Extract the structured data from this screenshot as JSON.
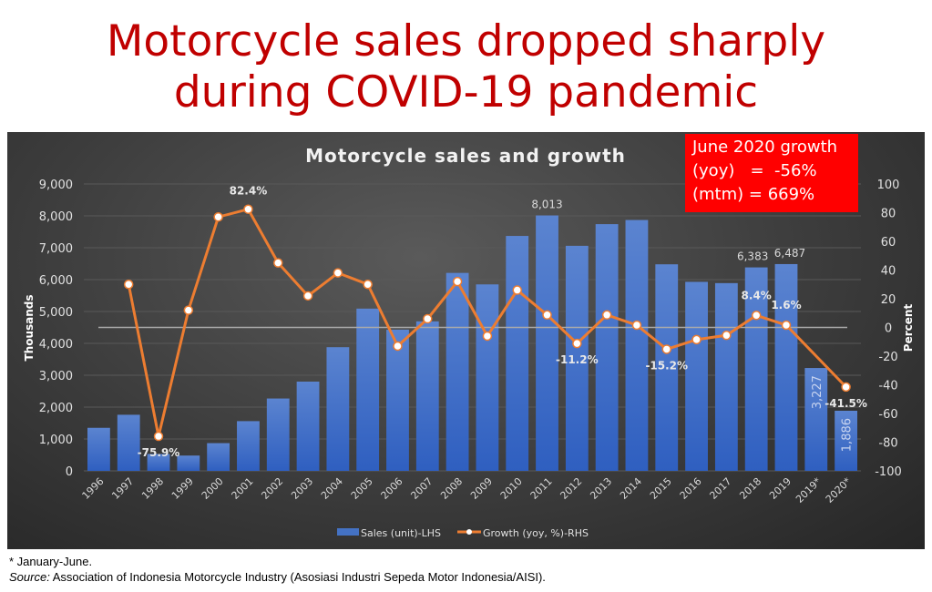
{
  "headline": [
    "Motorcycle sales dropped sharply",
    "during COVID-19 pandemic"
  ],
  "callout": [
    "June 2020 growth",
    "(yoy)   =  -56%",
    "(mtm) = 669%"
  ],
  "footnote": "* January-June.",
  "source_label": "Source:",
  "source_text": " Association of Indonesia Motorcycle Industry (Asosiasi Industri Sepeda Motor Indonesia/AISI).",
  "colors": {
    "bar": "#4472c4",
    "line": "#ed7d31",
    "headline": "#c00000",
    "callout": "#ff0000"
  },
  "chart_data": {
    "type": "bar+line",
    "title": "Motorcycle sales and growth",
    "ylabel": "Thousands",
    "y2label": "Percent",
    "ylim": [
      0,
      9000
    ],
    "y2lim": [
      -100,
      100
    ],
    "yticks": [
      "0",
      "1,000",
      "2,000",
      "3,000",
      "4,000",
      "5,000",
      "6,000",
      "7,000",
      "8,000",
      "9,000"
    ],
    "y2ticks": [
      "-100",
      "-80",
      "-60",
      "-40",
      "-20",
      "0",
      "20",
      "40",
      "60",
      "80",
      "100"
    ],
    "categories": [
      "1996",
      "1997",
      "1998",
      "1999",
      "2000",
      "2001",
      "2002",
      "2003",
      "2004",
      "2005",
      "2006",
      "2007",
      "2008",
      "2009",
      "2010",
      "2011",
      "2012",
      "2013",
      "2014",
      "2015",
      "2016",
      "2017",
      "2018",
      "2019",
      "2019*",
      "2020*"
    ],
    "series": [
      {
        "name": "Sales (unit)-LHS",
        "axis": "left",
        "values": [
          1350,
          1760,
          530,
          480,
          870,
          1560,
          2270,
          2800,
          3880,
          5090,
          4430,
          4690,
          6210,
          5850,
          7370,
          8013,
          7060,
          7740,
          7870,
          6480,
          5930,
          5890,
          6383,
          6487,
          3227,
          1886
        ]
      },
      {
        "name": "Growth (yoy, %)-RHS",
        "axis": "right",
        "values": [
          null,
          30,
          -75.9,
          12,
          77,
          82.4,
          45,
          22,
          38,
          30,
          -13,
          6,
          32,
          -6,
          26,
          8.7,
          -11.2,
          8.7,
          1.6,
          -15.2,
          -8.5,
          -5.5,
          8.4,
          1.6,
          null,
          -41.5
        ]
      }
    ],
    "bar_labels": {
      "15": "8,013",
      "22": "6,383",
      "23": "6,487",
      "24": "3,227",
      "25": "1,886"
    },
    "line_labels": {
      "2": "-75.9%",
      "5": "82.4%",
      "16": "-11.2%",
      "19": "-15.2%",
      "22": "8.4%",
      "23": "1.6%",
      "25": "-41.5%"
    },
    "legend": "bottom"
  }
}
